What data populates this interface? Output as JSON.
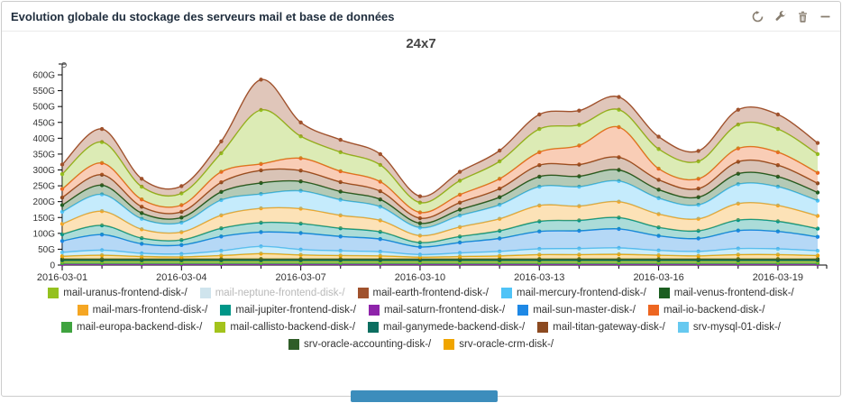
{
  "widget": {
    "title": "Evolution globale du stockage des serveurs mail et base de données",
    "toolbar_icons": [
      "refresh-icon",
      "wrench-icon",
      "trash-icon",
      "collapse-icon"
    ]
  },
  "colors": {
    "toolbar_icon": "#877d6f",
    "axis": "#000000",
    "tick_label": "#333333",
    "scrollbar_thumb": "#3c8dbc",
    "disabled_legend_text": "#b9b9b9"
  },
  "chart_data": {
    "type": "area",
    "stacked": true,
    "title": "24x7",
    "unit": "G",
    "ylim": [
      0,
      600
    ],
    "grid": false,
    "legend_position": "bottom",
    "yticks": [
      "0",
      "50G",
      "100G",
      "150G",
      "200G",
      "250G",
      "300G",
      "350G",
      "400G",
      "450G",
      "500G",
      "550G",
      "600G"
    ],
    "x": [
      "2016-03-01",
      "2016-03-02",
      "2016-03-03",
      "2016-03-04",
      "2016-03-05",
      "2016-03-06",
      "2016-03-07",
      "2016-03-08",
      "2016-03-09",
      "2016-03-10",
      "2016-03-11",
      "2016-03-12",
      "2016-03-13",
      "2016-03-14",
      "2016-03-15",
      "2016-03-16",
      "2016-03-17",
      "2016-03-18",
      "2016-03-19",
      "2016-03-20"
    ],
    "xtick_labels": [
      "2016-03-01",
      "2016-03-04",
      "2016-03-07",
      "2016-03-10",
      "2016-03-13",
      "2016-03-16",
      "2016-03-19"
    ],
    "series": [
      {
        "name": "mail-saturn-frontend-disk-/",
        "color": "#8e24aa",
        "values": [
          2,
          2,
          2,
          2,
          2,
          2,
          2,
          2,
          2,
          2,
          2,
          2,
          2,
          2,
          2,
          2,
          2,
          2,
          2,
          2
        ]
      },
      {
        "name": "mail-europa-backend-disk-/",
        "color": "#3fa33f",
        "values": [
          4,
          4,
          4,
          4,
          4,
          4,
          4,
          4,
          4,
          4,
          4,
          4,
          4,
          4,
          4,
          4,
          4,
          4,
          4,
          4
        ]
      },
      {
        "name": "mail-callisto-backend-disk-/",
        "color": "#a3c31c",
        "values": [
          5,
          5,
          5,
          5,
          5,
          5,
          5,
          5,
          5,
          5,
          5,
          5,
          5,
          5,
          5,
          5,
          5,
          5,
          5,
          5
        ]
      },
      {
        "name": "mail-ganymede-backend-disk-/",
        "color": "#0c6e60",
        "values": [
          4,
          4,
          4,
          4,
          4,
          4,
          4,
          4,
          4,
          4,
          4,
          4,
          4,
          4,
          4,
          4,
          4,
          4,
          4,
          4
        ]
      },
      {
        "name": "srv-oracle-accounting-disk-/",
        "color": "#2f5d28",
        "values": [
          4,
          4,
          4,
          4,
          4,
          4,
          4,
          4,
          4,
          4,
          4,
          4,
          4,
          4,
          4,
          4,
          4,
          4,
          4,
          4
        ]
      },
      {
        "name": "srv-oracle-crm-disk-/",
        "color": "#f0a500",
        "values": [
          9,
          12,
          8,
          7,
          11,
          17,
          13,
          11,
          10,
          6,
          8,
          10,
          14,
          14,
          15,
          12,
          10,
          14,
          14,
          11
        ]
      },
      {
        "name": "srv-mysql-01-disk-/",
        "color": "#66c9f0",
        "values": [
          12,
          16,
          10,
          9,
          15,
          23,
          17,
          15,
          13,
          8,
          11,
          14,
          18,
          19,
          20,
          15,
          14,
          19,
          18,
          15
        ]
      },
      {
        "name": "mail-sun-master-disk-/",
        "color": "#1e88e5",
        "values": [
          36,
          49,
          30,
          28,
          45,
          45,
          52,
          45,
          40,
          24,
          33,
          41,
          55,
          56,
          60,
          46,
          41,
          57,
          55,
          44
        ]
      },
      {
        "name": "mail-jupiter-frontend-disk-/",
        "color": "#009688",
        "values": [
          21,
          29,
          18,
          16,
          26,
          30,
          30,
          26,
          23,
          14,
          19,
          24,
          32,
          33,
          36,
          27,
          24,
          33,
          32,
          26
        ]
      },
      {
        "name": "mail-mars-frontend-disk-/",
        "color": "#f5a623",
        "values": [
          33,
          45,
          28,
          25,
          41,
          45,
          47,
          41,
          36,
          22,
          30,
          38,
          50,
          45,
          50,
          42,
          38,
          52,
          50,
          40
        ]
      },
      {
        "name": "mail-mercury-frontend-disk-/",
        "color": "#4fc3f7",
        "values": [
          38,
          53,
          33,
          30,
          48,
          45,
          56,
          49,
          43,
          25,
          36,
          44,
          59,
          61,
          65,
          50,
          44,
          61,
          59,
          48
        ]
      },
      {
        "name": "mail-venus-frontend-disk-/",
        "color": "#1b5e20",
        "values": [
          21,
          29,
          18,
          16,
          26,
          35,
          30,
          26,
          23,
          14,
          19,
          24,
          32,
          33,
          35,
          27,
          24,
          33,
          32,
          26
        ]
      },
      {
        "name": "mail-titan-gateway-disk-/",
        "color": "#8c4a21",
        "values": [
          24,
          33,
          20,
          18,
          30,
          40,
          34,
          30,
          26,
          16,
          22,
          27,
          36,
          37,
          40,
          31,
          27,
          38,
          36,
          29
        ]
      },
      {
        "name": "mail-io-backend-disk-/",
        "color": "#ed6621",
        "values": [
          27,
          37,
          23,
          21,
          33,
          20,
          39,
          34,
          30,
          18,
          25,
          31,
          41,
          60,
          95,
          35,
          31,
          42,
          41,
          33
        ]
      },
      {
        "name": "mail-uranus-frontend-disk-/",
        "color": "#94c11f",
        "values": [
          47,
          66,
          40,
          37,
          59,
          170,
          69,
          60,
          53,
          31,
          44,
          55,
          73,
          65,
          55,
          62,
          55,
          75,
          73,
          59
        ]
      },
      {
        "name": "mail-earth-frontend-disk-/",
        "color": "#a0522d",
        "values": [
          30,
          41,
          25,
          23,
          37,
          96,
          44,
          39,
          34,
          20,
          28,
          34,
          46,
          45,
          40,
          39,
          33,
          47,
          46,
          35
        ]
      }
    ],
    "legend": [
      {
        "id": "uranus",
        "label": "mail-uranus-frontend-disk-/",
        "color": "#94c11f",
        "disabled": false
      },
      {
        "id": "neptune",
        "label": "mail-neptune-frontend-disk-/",
        "color": "#cfe4ed",
        "disabled": true
      },
      {
        "id": "earth",
        "label": "mail-earth-frontend-disk-/",
        "color": "#a0522d",
        "disabled": false
      },
      {
        "id": "mercury",
        "label": "mail-mercury-frontend-disk-/",
        "color": "#4fc3f7",
        "disabled": false
      },
      {
        "id": "venus",
        "label": "mail-venus-frontend-disk-/",
        "color": "#1b5e20",
        "disabled": false
      },
      {
        "id": "mars",
        "label": "mail-mars-frontend-disk-/",
        "color": "#f5a623",
        "disabled": false
      },
      {
        "id": "jupiter",
        "label": "mail-jupiter-frontend-disk-/",
        "color": "#009688",
        "disabled": false
      },
      {
        "id": "saturn",
        "label": "mail-saturn-frontend-disk-/",
        "color": "#8e24aa",
        "disabled": false
      },
      {
        "id": "sun",
        "label": "mail-sun-master-disk-/",
        "color": "#1e88e5",
        "disabled": false
      },
      {
        "id": "io",
        "label": "mail-io-backend-disk-/",
        "color": "#ed6621",
        "disabled": false
      },
      {
        "id": "europa",
        "label": "mail-europa-backend-disk-/",
        "color": "#3fa33f",
        "disabled": false
      },
      {
        "id": "callisto",
        "label": "mail-callisto-backend-disk-/",
        "color": "#a3c31c",
        "disabled": false
      },
      {
        "id": "ganymede",
        "label": "mail-ganymede-backend-disk-/",
        "color": "#0c6e60",
        "disabled": false
      },
      {
        "id": "titan",
        "label": "mail-titan-gateway-disk-/",
        "color": "#8c4a21",
        "disabled": false
      },
      {
        "id": "mysql",
        "label": "srv-mysql-01-disk-/",
        "color": "#66c9f0",
        "disabled": false
      },
      {
        "id": "oracle-accounting",
        "label": "srv-oracle-accounting-disk-/",
        "color": "#2f5d28",
        "disabled": false
      },
      {
        "id": "oracle-crm",
        "label": "srv-oracle-crm-disk-/",
        "color": "#f0a500",
        "disabled": false
      }
    ]
  }
}
